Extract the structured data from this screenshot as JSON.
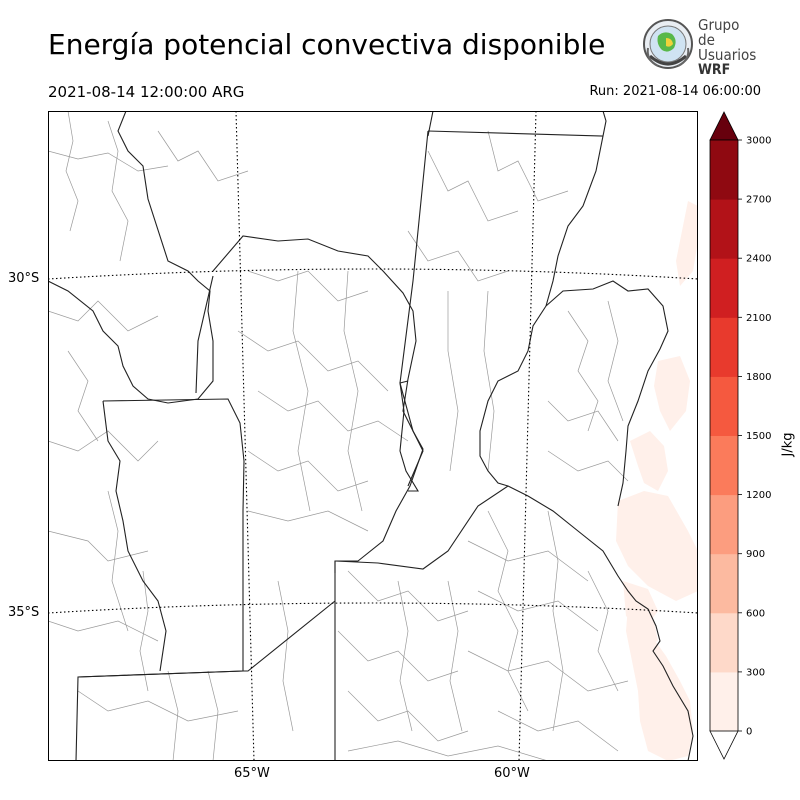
{
  "title": "Energía potencial convectiva disponible",
  "valid_time": "2021-08-14 12:00:00 ARG",
  "run_time": "Run: 2021-08-14 06:00:00",
  "logo": {
    "line1": "Grupo de",
    "line2": "Usuarios",
    "line3": "WRF",
    "icon": "globe-logo-icon"
  },
  "map": {
    "lat_labels": [
      "30°S",
      "35°S"
    ],
    "lon_labels": [
      "65°W",
      "60°W"
    ]
  },
  "colorbar": {
    "unit_label": "J/kg",
    "ticks": [
      "0",
      "300",
      "600",
      "900",
      "1200",
      "1500",
      "1800",
      "2100",
      "2400",
      "2700",
      "3000"
    ],
    "colors": [
      "#fff0ea",
      "#fed9c9",
      "#fcbaa0",
      "#fc9d7f",
      "#fb7b5b",
      "#f5593f",
      "#e83a2d",
      "#d01f21",
      "#b21218",
      "#8f0911"
    ],
    "extend_color": "#67000d"
  },
  "chart_data": {
    "type": "heatmap",
    "variable": "CAPE",
    "unit": "J/kg",
    "range": [
      0,
      3000
    ],
    "step": 300,
    "observed_max_band": [
      0,
      300
    ]
  }
}
